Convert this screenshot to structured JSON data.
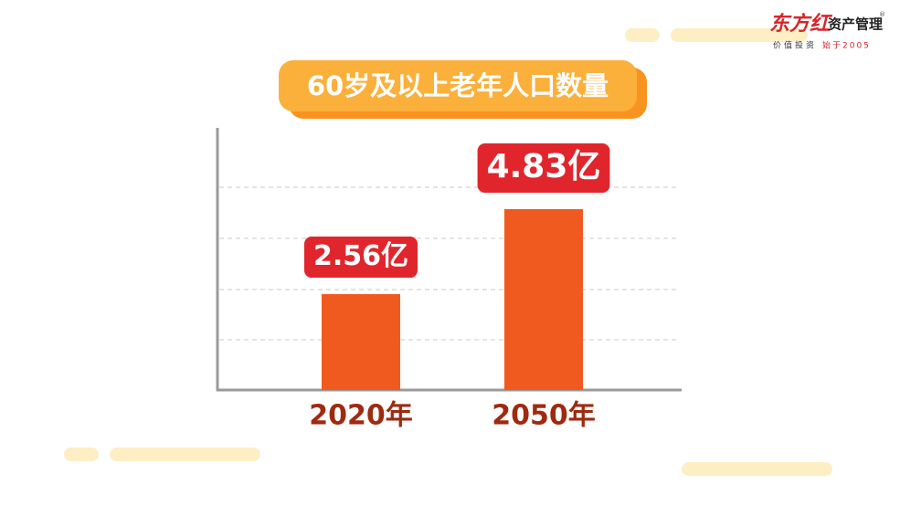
{
  "chart_data": {
    "type": "bar",
    "title": "60岁及以上老年人口数量",
    "categories": [
      "2020年",
      "2050年"
    ],
    "values": [
      2.56,
      4.83
    ],
    "value_labels": [
      "2.56亿",
      "4.83亿"
    ],
    "color": "#f15a1f",
    "ylim": [
      0,
      7
    ]
  },
  "logo": {
    "brand": "东方红",
    "name": "资产管理",
    "mark": "®",
    "slogan": "价值投资",
    "slogan_accent": "始于2005"
  }
}
